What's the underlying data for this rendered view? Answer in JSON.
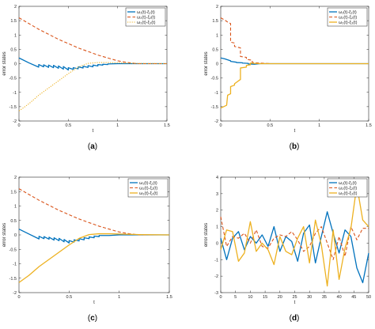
{
  "chart_data": [
    {
      "type": "line",
      "label": "(a)",
      "xlabel": "t",
      "ylabel": "error states",
      "xlim": [
        0,
        1.5
      ],
      "ylim": [
        -2,
        2
      ],
      "xticks": [
        "0",
        "0.5",
        "1",
        "1.5"
      ],
      "yticks": [
        "-2",
        "-1.5",
        "-1",
        "-0.5",
        "0",
        "0.5",
        "1",
        "1.5",
        "2"
      ],
      "grid": false,
      "legend": "top-right",
      "series": [
        {
          "name": "ω₁(t)-ξ₁(t)",
          "color": "#0072BD",
          "dash": "solid",
          "x": [
            0,
            0.1,
            0.2,
            0.2,
            0.25,
            0.25,
            0.3,
            0.3,
            0.35,
            0.35,
            0.4,
            0.4,
            0.45,
            0.45,
            0.5,
            0.5,
            0.55,
            0.55,
            0.6,
            0.6,
            0.65,
            0.65,
            0.7,
            0.7,
            0.75,
            0.75,
            0.8,
            0.8,
            0.85,
            0.85,
            0.9,
            0.9,
            1.0,
            1.1,
            1.2,
            1.3,
            1.5
          ],
          "values": [
            0.2,
            0.03,
            -0.12,
            -0.03,
            -0.11,
            -0.04,
            -0.13,
            -0.05,
            -0.14,
            -0.06,
            -0.16,
            -0.08,
            -0.19,
            -0.1,
            -0.22,
            -0.14,
            -0.2,
            -0.14,
            -0.18,
            -0.11,
            -0.15,
            -0.09,
            -0.13,
            -0.07,
            -0.11,
            -0.05,
            -0.08,
            -0.03,
            -0.05,
            -0.02,
            -0.03,
            -0.01,
            0,
            0,
            0,
            0,
            0
          ]
        },
        {
          "name": "ω₂(t)-ξ₂(t)",
          "color": "#D95319",
          "dash": "dashed",
          "x": [
            0,
            0.2,
            0.4,
            0.6,
            0.8,
            1.0,
            1.1,
            1.2,
            1.5
          ],
          "values": [
            1.6,
            1.2,
            0.85,
            0.55,
            0.3,
            0.1,
            0.04,
            0,
            0
          ]
        },
        {
          "name": "ω₃(t)-ξ₃(t)",
          "color": "#EDB120",
          "dash": "dotted",
          "x": [
            0,
            0.1,
            0.2,
            0.3,
            0.4,
            0.5,
            0.6,
            0.7,
            0.8,
            0.9,
            1.0,
            1.2,
            1.5
          ],
          "values": [
            -1.65,
            -1.4,
            -1.1,
            -0.85,
            -0.6,
            -0.35,
            -0.12,
            0.01,
            0.04,
            0.04,
            0.03,
            0.01,
            0
          ]
        }
      ]
    },
    {
      "type": "line",
      "label": "(b)",
      "xlabel": "t",
      "ylabel": "error states",
      "xlim": [
        0,
        1.5
      ],
      "ylim": [
        -2,
        2
      ],
      "xticks": [
        "0",
        "0.5",
        "1",
        "1.5"
      ],
      "yticks": [
        "-2",
        "-1.5",
        "-1",
        "-0.5",
        "0",
        "0.5",
        "1",
        "1.5",
        "2"
      ],
      "grid": false,
      "legend": "top-right",
      "series": [
        {
          "name": "ω₁(t)-ξ₁(t)",
          "color": "#0072BD",
          "dash": "solid",
          "x": [
            0,
            0.04,
            0.1,
            0.1,
            0.16,
            0.16,
            0.22,
            0.22,
            0.28,
            0.28,
            0.34,
            0.34,
            0.4,
            0.5,
            1.5
          ],
          "values": [
            0.2,
            0.17,
            0.1,
            0.08,
            0.05,
            0.04,
            0.03,
            0.02,
            0.01,
            -0.01,
            -0.02,
            -0.02,
            0,
            0,
            0
          ]
        },
        {
          "name": "ω₂(t)-ξ₂(t)",
          "color": "#D95319",
          "dash": "dashed",
          "x": [
            0,
            0.05,
            0.07,
            0.1,
            0.1,
            0.14,
            0.14,
            0.2,
            0.2,
            0.26,
            0.26,
            0.32,
            0.32,
            0.4,
            0.5,
            1.5
          ],
          "values": [
            1.6,
            1.5,
            1.45,
            1.4,
            0.75,
            0.72,
            0.6,
            0.55,
            0.25,
            0.22,
            0.15,
            0.12,
            0.04,
            0.02,
            0,
            0
          ]
        },
        {
          "name": "ω₃(t)-ξ₃(t)",
          "color": "#EDB120",
          "dash": "solid",
          "x": [
            0,
            0.06,
            0.07,
            0.1,
            0.1,
            0.14,
            0.14,
            0.2,
            0.2,
            0.26,
            0.26,
            0.3,
            0.3,
            0.34,
            0.4,
            0.5,
            1.5
          ],
          "values": [
            -1.55,
            -1.45,
            -1.1,
            -1.05,
            -0.8,
            -0.75,
            -0.7,
            -0.55,
            -0.15,
            -0.12,
            -0.06,
            -0.04,
            0.02,
            0.01,
            0,
            0,
            0
          ]
        }
      ]
    },
    {
      "type": "line",
      "label": "(c)",
      "xlabel": "t",
      "ylabel": "error states",
      "xlim": [
        0,
        1.5
      ],
      "ylim": [
        -2,
        2
      ],
      "xticks": [
        "0",
        "0.5",
        "1",
        "1.5"
      ],
      "yticks": [
        "-2",
        "-1.5",
        "-1",
        "-0.5",
        "0",
        "0.5",
        "1",
        "1.5",
        "2"
      ],
      "grid": false,
      "legend": "top-right",
      "series": [
        {
          "name": "ω₁(t)-ξ₁(t)",
          "color": "#0072BD",
          "dash": "solid",
          "x": [
            0,
            0.1,
            0.2,
            0.2,
            0.25,
            0.25,
            0.3,
            0.3,
            0.35,
            0.35,
            0.4,
            0.4,
            0.45,
            0.45,
            0.5,
            0.5,
            0.55,
            0.55,
            0.6,
            0.6,
            0.65,
            0.65,
            0.7,
            0.7,
            0.75,
            0.75,
            0.8,
            0.8,
            0.9,
            1.0,
            1.2,
            1.5
          ],
          "values": [
            0.2,
            0.03,
            -0.14,
            -0.05,
            -0.13,
            -0.06,
            -0.15,
            -0.08,
            -0.18,
            -0.1,
            -0.2,
            -0.12,
            -0.24,
            -0.16,
            -0.28,
            -0.2,
            -0.25,
            -0.17,
            -0.21,
            -0.13,
            -0.17,
            -0.1,
            -0.13,
            -0.07,
            -0.1,
            -0.04,
            -0.06,
            -0.02,
            -0.02,
            0,
            0,
            0
          ]
        },
        {
          "name": "ω₂(t)-ξ₂(t)",
          "color": "#D95319",
          "dash": "dashed",
          "x": [
            0,
            0.2,
            0.4,
            0.6,
            0.8,
            1.0,
            1.1,
            1.2,
            1.5
          ],
          "values": [
            1.6,
            1.2,
            0.85,
            0.55,
            0.3,
            0.1,
            0.04,
            0,
            0
          ]
        },
        {
          "name": "ω₃(t)-ξ₃(t)",
          "color": "#EDB120",
          "dash": "solid",
          "x": [
            0,
            0.1,
            0.2,
            0.3,
            0.4,
            0.5,
            0.6,
            0.7,
            0.8,
            0.9,
            1.0,
            1.2,
            1.5
          ],
          "values": [
            -1.65,
            -1.4,
            -1.1,
            -0.85,
            -0.6,
            -0.35,
            -0.12,
            0.01,
            0.04,
            0.04,
            0.03,
            0.01,
            0
          ]
        }
      ]
    },
    {
      "type": "line",
      "label": "(d)",
      "xlabel": "t",
      "ylabel": "error states",
      "xlim": [
        0,
        50
      ],
      "ylim": [
        -3,
        4
      ],
      "xticks": [
        "0",
        "5",
        "10",
        "15",
        "20",
        "25",
        "30",
        "35",
        "40",
        "45",
        "50"
      ],
      "yticks": [
        "-3",
        "-2",
        "-1",
        "0",
        "1",
        "2",
        "3",
        "4"
      ],
      "grid": false,
      "legend": "top-right",
      "series": [
        {
          "name": "ω₁(t)-ξ₁(t)",
          "color": "#0072BD",
          "dash": "solid",
          "x": [
            0,
            2,
            4,
            6,
            8,
            10,
            12,
            14,
            16,
            18,
            20,
            22,
            24,
            26,
            28,
            30,
            32,
            34,
            36,
            38,
            40,
            42,
            44,
            46,
            48,
            50
          ],
          "values": [
            0.3,
            -1.0,
            0.3,
            0.7,
            -0.4,
            0.4,
            0.0,
            0.5,
            -0.2,
            1.0,
            -0.5,
            0.4,
            0.1,
            -1.1,
            0.6,
            1.1,
            -1.2,
            0.4,
            1.9,
            0.6,
            -0.6,
            0.8,
            0.4,
            -1.5,
            -2.4,
            -0.6
          ]
        },
        {
          "name": "ω₂(t)-ξ₂(t)",
          "color": "#D95319",
          "dash": "dashed",
          "x": [
            0,
            2,
            4,
            6,
            8,
            10,
            12,
            14,
            16,
            18,
            20,
            22,
            24,
            26,
            28,
            30,
            32,
            34,
            36,
            38,
            40,
            42,
            44,
            46,
            48,
            50
          ],
          "values": [
            1.6,
            -0.2,
            0.4,
            0.3,
            0.6,
            0.0,
            0.8,
            -0.2,
            -0.3,
            0.3,
            0.5,
            0.4,
            0.7,
            0.2,
            -0.5,
            -0.2,
            0.6,
            1.0,
            0.0,
            -1.0,
            0.4,
            -0.8,
            1.0,
            0.2,
            0.9,
            0.9
          ]
        },
        {
          "name": "ω₃(t)-ξ₃(t)",
          "color": "#EDB120",
          "dash": "solid",
          "x": [
            0,
            2,
            4,
            6,
            8,
            10,
            12,
            14,
            16,
            18,
            20,
            22,
            24,
            26,
            28,
            30,
            32,
            34,
            36,
            38,
            40,
            42,
            44,
            46,
            48,
            50
          ],
          "values": [
            -0.4,
            0.8,
            0.7,
            -1.1,
            -0.6,
            1.3,
            -0.5,
            0.0,
            -0.4,
            -1.3,
            0.4,
            -0.5,
            -0.7,
            0.3,
            1.0,
            -1.2,
            1.4,
            -0.1,
            -2.6,
            0.8,
            -2.2,
            -0.3,
            0.9,
            3.5,
            1.4,
            1.0
          ]
        }
      ]
    }
  ]
}
